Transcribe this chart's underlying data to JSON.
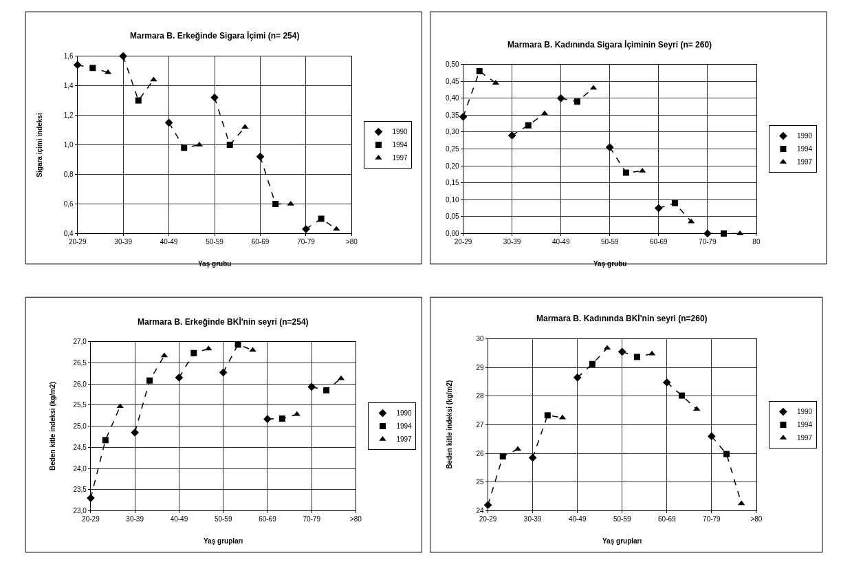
{
  "chart_data": [
    {
      "type": "line",
      "title": "Marmara B. Erkeğinde Sigara İçimi (n= 254)",
      "xlabel": "Yaş grubu",
      "ylabel": "Sigara içimi indeksi",
      "categories": [
        "20-29",
        null,
        null,
        "30-39",
        null,
        null,
        "40-49",
        null,
        null,
        "50-59",
        null,
        null,
        "60-69",
        null,
        null,
        "70-79",
        null,
        null,
        ">80"
      ],
      "ylim": [
        0.4,
        1.6
      ],
      "yticks": [
        {
          "value": 0.4,
          "label": "0,4"
        },
        {
          "value": 0.6,
          "label": "0,6"
        },
        {
          "value": 0.8,
          "label": "0,8"
        },
        {
          "value": 1.0,
          "label": "1,0"
        },
        {
          "value": 1.2,
          "label": "1,2"
        },
        {
          "value": 1.4,
          "label": "1,4"
        },
        {
          "value": 1.6,
          "label": "1,6"
        }
      ],
      "grid": true,
      "legend": "right",
      "series": [
        {
          "color": "#000000",
          "line_style": "dashed",
          "marker": "none",
          "values": [
            1.54,
            1.52,
            1.49,
            null,
            null,
            null,
            null,
            null,
            null,
            null,
            null,
            null,
            null,
            null,
            null,
            null,
            null,
            null,
            null
          ]
        },
        {
          "color": "#000000",
          "line_style": "dashed",
          "marker": "none",
          "values": [
            null,
            null,
            null,
            1.6,
            1.3,
            1.44,
            null,
            null,
            null,
            null,
            null,
            null,
            null,
            null,
            null,
            null,
            null,
            null,
            null
          ]
        },
        {
          "color": "#000000",
          "line_style": "dashed",
          "marker": "none",
          "values": [
            null,
            null,
            null,
            null,
            null,
            null,
            1.15,
            0.98,
            1.0,
            null,
            null,
            null,
            null,
            null,
            null,
            null,
            null,
            null,
            null
          ]
        },
        {
          "color": "#000000",
          "line_style": "dashed",
          "marker": "none",
          "values": [
            null,
            null,
            null,
            null,
            null,
            null,
            null,
            null,
            null,
            1.32,
            1.0,
            1.12,
            null,
            null,
            null,
            null,
            null,
            null,
            null
          ]
        },
        {
          "color": "#000000",
          "line_style": "dashed",
          "marker": "none",
          "values": [
            null,
            null,
            null,
            null,
            null,
            null,
            null,
            null,
            null,
            null,
            null,
            null,
            0.92,
            0.6,
            0.6,
            null,
            null,
            null,
            null
          ]
        },
        {
          "color": "#000000",
          "line_style": "dashed",
          "marker": "none",
          "values": [
            null,
            null,
            null,
            null,
            null,
            null,
            null,
            null,
            null,
            null,
            null,
            null,
            null,
            null,
            null,
            0.43,
            0.5,
            0.43,
            null
          ]
        },
        {
          "type": "scatter",
          "name": "1990",
          "color": "#000000",
          "marker": "diamond",
          "values": [
            1.54,
            null,
            null,
            1.6,
            null,
            null,
            1.15,
            null,
            null,
            1.32,
            null,
            null,
            0.92,
            null,
            null,
            0.43,
            null,
            null,
            null
          ]
        },
        {
          "type": "scatter",
          "name": "1994",
          "color": "#000000",
          "marker": "square",
          "values": [
            null,
            1.52,
            null,
            null,
            1.3,
            null,
            null,
            0.98,
            null,
            null,
            1.0,
            null,
            null,
            0.6,
            null,
            null,
            0.5,
            null,
            null
          ]
        },
        {
          "type": "scatter",
          "name": "1997",
          "color": "#000000",
          "marker": "triangle",
          "values": [
            null,
            null,
            1.49,
            null,
            null,
            1.44,
            null,
            null,
            1.0,
            null,
            null,
            1.12,
            null,
            null,
            0.6,
            null,
            null,
            0.43,
            null
          ]
        }
      ]
    },
    {
      "type": "line",
      "title": "Marmara B. Kadınında Sigara İçiminin Seyri (n= 260)",
      "xlabel": "Yaş grubu",
      "categories": [
        "20-29",
        null,
        null,
        "30-39",
        null,
        null,
        "40-49",
        null,
        null,
        "50-59",
        null,
        null,
        "60-69",
        null,
        null,
        "70-79",
        null,
        null,
        "80"
      ],
      "ylim": [
        0,
        0.5
      ],
      "yticks": [
        {
          "value": 0,
          "label": "0,00"
        },
        {
          "value": 0.05,
          "label": "0,05"
        },
        {
          "value": 0.1,
          "label": "0,10"
        },
        {
          "value": 0.15,
          "label": "0,15"
        },
        {
          "value": 0.2,
          "label": "0,20"
        },
        {
          "value": 0.25,
          "label": "0,25"
        },
        {
          "value": 0.3,
          "label": "0,30"
        },
        {
          "value": 0.35,
          "label": "0,35"
        },
        {
          "value": 0.4,
          "label": "0,40"
        },
        {
          "value": 0.45,
          "label": "0,45"
        },
        {
          "value": 0.5,
          "label": "0,50"
        }
      ],
      "grid": true,
      "legend": "right",
      "series": [
        {
          "color": "#000000",
          "line_style": "dashed",
          "marker": "none",
          "values": [
            0.345,
            0.48,
            0.445,
            null,
            null,
            null,
            null,
            null,
            null,
            null,
            null,
            null,
            null,
            null,
            null,
            null,
            null,
            null,
            null
          ]
        },
        {
          "color": "#000000",
          "line_style": "dashed",
          "marker": "none",
          "values": [
            null,
            null,
            null,
            0.29,
            0.32,
            0.355,
            null,
            null,
            null,
            null,
            null,
            null,
            null,
            null,
            null,
            null,
            null,
            null,
            null
          ]
        },
        {
          "color": "#000000",
          "line_style": "dashed",
          "marker": "none",
          "values": [
            null,
            null,
            null,
            null,
            null,
            null,
            0.4,
            0.39,
            0.43,
            null,
            null,
            null,
            null,
            null,
            null,
            null,
            null,
            null,
            null
          ]
        },
        {
          "color": "#000000",
          "line_style": "dashed",
          "marker": "none",
          "values": [
            null,
            null,
            null,
            null,
            null,
            null,
            null,
            null,
            null,
            0.255,
            0.18,
            0.185,
            null,
            null,
            null,
            null,
            null,
            null,
            null
          ]
        },
        {
          "color": "#000000",
          "line_style": "dashed",
          "marker": "none",
          "values": [
            null,
            null,
            null,
            null,
            null,
            null,
            null,
            null,
            null,
            null,
            null,
            null,
            0.075,
            0.09,
            0.035,
            null,
            null,
            null,
            null
          ]
        },
        {
          "color": "#000000",
          "line_style": "dashed",
          "marker": "none",
          "values": [
            null,
            null,
            null,
            null,
            null,
            null,
            null,
            null,
            null,
            null,
            null,
            null,
            null,
            null,
            null,
            0.0,
            0.0,
            0.0,
            null
          ]
        },
        {
          "type": "scatter",
          "name": "1990",
          "color": "#000000",
          "marker": "diamond",
          "values": [
            0.345,
            null,
            null,
            0.29,
            null,
            null,
            0.4,
            null,
            null,
            0.255,
            null,
            null,
            0.075,
            null,
            null,
            0.0,
            null,
            null,
            null
          ]
        },
        {
          "type": "scatter",
          "name": "1994",
          "color": "#000000",
          "marker": "square",
          "values": [
            null,
            0.48,
            null,
            null,
            0.32,
            null,
            null,
            0.39,
            null,
            null,
            0.18,
            null,
            null,
            0.09,
            null,
            null,
            0.0,
            null,
            null
          ]
        },
        {
          "type": "scatter",
          "name": "1997",
          "color": "#000000",
          "marker": "triangle",
          "values": [
            null,
            null,
            0.445,
            null,
            null,
            0.355,
            null,
            null,
            0.43,
            null,
            null,
            0.185,
            null,
            null,
            0.035,
            null,
            null,
            0.0,
            null
          ]
        }
      ]
    },
    {
      "type": "line",
      "title": "Marmara B. Erkeğinde BKİ'nin seyri (n=254)",
      "xlabel": "Yaş grupları",
      "ylabel": "Beden kitle indeksi (kg/m2)",
      "categories": [
        "20-29",
        null,
        null,
        "30-39",
        null,
        null,
        "40-49",
        null,
        null,
        "50-59",
        null,
        null,
        "60-69",
        null,
        null,
        "70-79",
        null,
        null,
        ">80"
      ],
      "ylim": [
        23,
        27
      ],
      "yticks": [
        {
          "value": 23,
          "label": "23,0"
        },
        {
          "value": 23.5,
          "label": "23,5"
        },
        {
          "value": 24,
          "label": "24,0"
        },
        {
          "value": 24.5,
          "label": "24,5"
        },
        {
          "value": 25,
          "label": "25,0"
        },
        {
          "value": 25.5,
          "label": "25,5"
        },
        {
          "value": 26,
          "label": "26,0"
        },
        {
          "value": 26.5,
          "label": "26,5"
        },
        {
          "value": 27,
          "label": "27,0"
        }
      ],
      "grid": true,
      "legend": "right",
      "series": [
        {
          "color": "#000000",
          "line_style": "dashed",
          "marker": "none",
          "values": [
            23.3,
            24.67,
            25.47,
            null,
            null,
            null,
            null,
            null,
            null,
            null,
            null,
            null,
            null,
            null,
            null,
            null,
            null,
            null,
            null
          ]
        },
        {
          "color": "#000000",
          "line_style": "dashed",
          "marker": "none",
          "values": [
            null,
            null,
            null,
            24.85,
            26.08,
            26.67,
            null,
            null,
            null,
            null,
            null,
            null,
            null,
            null,
            null,
            null,
            null,
            null,
            null
          ]
        },
        {
          "color": "#000000",
          "line_style": "dashed",
          "marker": "none",
          "values": [
            null,
            null,
            null,
            null,
            null,
            null,
            26.15,
            26.73,
            26.83,
            null,
            null,
            null,
            null,
            null,
            null,
            null,
            null,
            null,
            null
          ]
        },
        {
          "color": "#000000",
          "line_style": "dashed",
          "marker": "none",
          "values": [
            null,
            null,
            null,
            null,
            null,
            null,
            null,
            null,
            null,
            26.27,
            26.93,
            26.8,
            null,
            null,
            null,
            null,
            null,
            null,
            null
          ]
        },
        {
          "color": "#000000",
          "line_style": "dashed",
          "marker": "none",
          "values": [
            null,
            null,
            null,
            null,
            null,
            null,
            null,
            null,
            null,
            null,
            null,
            null,
            25.17,
            25.18,
            25.28,
            null,
            null,
            null,
            null
          ]
        },
        {
          "color": "#000000",
          "line_style": "dashed",
          "marker": "none",
          "values": [
            null,
            null,
            null,
            null,
            null,
            null,
            null,
            null,
            null,
            null,
            null,
            null,
            null,
            null,
            null,
            25.93,
            25.85,
            26.13,
            null
          ]
        },
        {
          "type": "scatter",
          "name": "1990",
          "color": "#000000",
          "marker": "diamond",
          "values": [
            23.3,
            null,
            null,
            24.85,
            null,
            null,
            26.15,
            null,
            null,
            26.27,
            null,
            null,
            25.17,
            null,
            null,
            25.93,
            null,
            null,
            null
          ]
        },
        {
          "type": "scatter",
          "name": "1994",
          "color": "#000000",
          "marker": "square",
          "values": [
            null,
            24.67,
            null,
            null,
            26.08,
            null,
            null,
            26.73,
            null,
            null,
            26.93,
            null,
            null,
            25.18,
            null,
            null,
            25.85,
            null,
            null
          ]
        },
        {
          "type": "scatter",
          "name": "1997",
          "color": "#000000",
          "marker": "triangle",
          "values": [
            null,
            null,
            25.47,
            null,
            null,
            26.67,
            null,
            null,
            26.83,
            null,
            null,
            26.8,
            null,
            null,
            25.28,
            null,
            null,
            26.13,
            null
          ]
        }
      ]
    },
    {
      "type": "line",
      "title": "Marmara B. Kadınında BKİ'nin seyri (n=260)",
      "xlabel": "Yaş grupları",
      "ylabel": "Beden kitle indeksi (kg/m2)",
      "categories": [
        "20-29",
        null,
        null,
        "30-39",
        null,
        null,
        "40-49",
        null,
        null,
        "50-59",
        null,
        null,
        "60-69",
        null,
        null,
        "70-79",
        null,
        null,
        ">80"
      ],
      "ylim": [
        24,
        30
      ],
      "yticks": [
        24,
        25,
        26,
        27,
        28,
        29,
        30
      ],
      "grid": true,
      "legend": "right",
      "series": [
        {
          "color": "#000000",
          "line_style": "dashed",
          "marker": "none",
          "values": [
            24.2,
            25.9,
            26.15,
            null,
            null,
            null,
            null,
            null,
            null,
            null,
            null,
            null,
            null,
            null,
            null,
            null,
            null,
            null,
            null
          ]
        },
        {
          "color": "#000000",
          "line_style": "dashed",
          "marker": "none",
          "values": [
            null,
            null,
            null,
            25.85,
            27.33,
            27.25,
            null,
            null,
            null,
            null,
            null,
            null,
            null,
            null,
            null,
            null,
            null,
            null,
            null
          ]
        },
        {
          "color": "#000000",
          "line_style": "dashed",
          "marker": "none",
          "values": [
            null,
            null,
            null,
            null,
            null,
            null,
            28.65,
            29.12,
            29.68,
            null,
            null,
            null,
            null,
            null,
            null,
            null,
            null,
            null,
            null
          ]
        },
        {
          "color": "#000000",
          "line_style": "dashed",
          "marker": "none",
          "values": [
            null,
            null,
            null,
            null,
            null,
            null,
            null,
            null,
            null,
            29.55,
            29.37,
            29.48,
            null,
            null,
            null,
            null,
            null,
            null,
            null
          ]
        },
        {
          "color": "#000000",
          "line_style": "dashed",
          "marker": "none",
          "values": [
            null,
            null,
            null,
            null,
            null,
            null,
            null,
            null,
            null,
            null,
            null,
            null,
            28.48,
            28.02,
            27.55,
            null,
            null,
            null,
            null
          ]
        },
        {
          "color": "#000000",
          "line_style": "dashed",
          "marker": "none",
          "values": [
            null,
            null,
            null,
            null,
            null,
            null,
            null,
            null,
            null,
            null,
            null,
            null,
            null,
            null,
            null,
            26.6,
            25.98,
            24.25,
            null
          ]
        },
        {
          "type": "scatter",
          "name": "1990",
          "color": "#000000",
          "marker": "diamond",
          "values": [
            24.2,
            null,
            null,
            25.85,
            null,
            null,
            28.65,
            null,
            null,
            29.55,
            null,
            null,
            28.48,
            null,
            null,
            26.6,
            null,
            null,
            null
          ]
        },
        {
          "type": "scatter",
          "name": "1994",
          "color": "#000000",
          "marker": "square",
          "values": [
            null,
            25.9,
            null,
            null,
            27.33,
            null,
            null,
            29.12,
            null,
            null,
            29.37,
            null,
            null,
            28.02,
            null,
            null,
            25.98,
            null,
            null
          ]
        },
        {
          "type": "scatter",
          "name": "1997",
          "color": "#000000",
          "marker": "triangle",
          "values": [
            null,
            null,
            26.15,
            null,
            null,
            27.25,
            null,
            null,
            29.68,
            null,
            null,
            29.48,
            null,
            null,
            27.55,
            null,
            null,
            24.25,
            null
          ]
        }
      ]
    }
  ]
}
